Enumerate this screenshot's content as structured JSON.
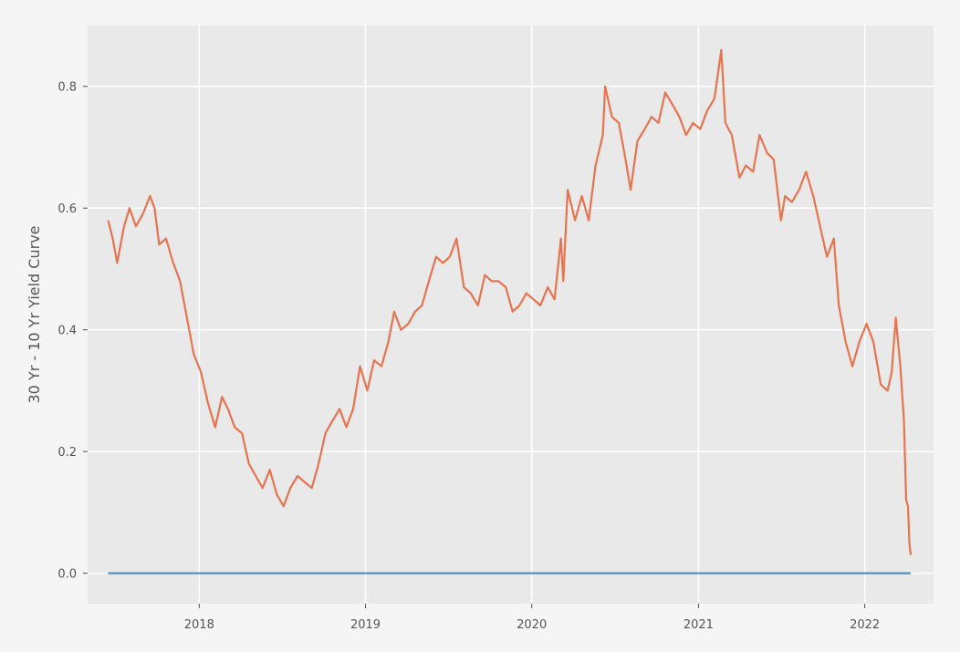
{
  "chart_data": {
    "type": "line",
    "title": "",
    "xlabel": "",
    "ylabel": "30 Yr - 10 Yr Yield Curve",
    "xlim": [
      "2017-05-01",
      "2022-06-01"
    ],
    "ylim": [
      -0.05,
      0.9
    ],
    "x_ticks": [
      "2018",
      "2019",
      "2020",
      "2021",
      "2022"
    ],
    "y_ticks": [
      "0.0",
      "0.2",
      "0.4",
      "0.6",
      "0.8"
    ],
    "grid": true,
    "series": [
      {
        "color": "#e8744f",
        "points": [
          [
            "2017-06-15",
            0.58
          ],
          [
            "2017-06-25",
            0.55
          ],
          [
            "2017-07-05",
            0.51
          ],
          [
            "2017-07-20",
            0.57
          ],
          [
            "2017-08-01",
            0.6
          ],
          [
            "2017-08-15",
            0.57
          ],
          [
            "2017-08-30",
            0.59
          ],
          [
            "2017-09-15",
            0.62
          ],
          [
            "2017-09-25",
            0.6
          ],
          [
            "2017-10-05",
            0.54
          ],
          [
            "2017-10-20",
            0.55
          ],
          [
            "2017-11-05",
            0.51
          ],
          [
            "2017-11-20",
            0.48
          ],
          [
            "2017-12-05",
            0.42
          ],
          [
            "2017-12-20",
            0.36
          ],
          [
            "2018-01-05",
            0.33
          ],
          [
            "2018-01-20",
            0.28
          ],
          [
            "2018-02-05",
            0.24
          ],
          [
            "2018-02-20",
            0.29
          ],
          [
            "2018-03-05",
            0.27
          ],
          [
            "2018-03-20",
            0.24
          ],
          [
            "2018-04-05",
            0.23
          ],
          [
            "2018-04-20",
            0.18
          ],
          [
            "2018-05-05",
            0.16
          ],
          [
            "2018-05-20",
            0.14
          ],
          [
            "2018-06-05",
            0.17
          ],
          [
            "2018-06-20",
            0.13
          ],
          [
            "2018-07-05",
            0.11
          ],
          [
            "2018-07-20",
            0.14
          ],
          [
            "2018-08-05",
            0.16
          ],
          [
            "2018-08-20",
            0.15
          ],
          [
            "2018-09-05",
            0.14
          ],
          [
            "2018-09-20",
            0.18
          ],
          [
            "2018-10-05",
            0.23
          ],
          [
            "2018-10-20",
            0.25
          ],
          [
            "2018-11-05",
            0.27
          ],
          [
            "2018-11-20",
            0.24
          ],
          [
            "2018-12-05",
            0.27
          ],
          [
            "2018-12-20",
            0.34
          ],
          [
            "2019-01-05",
            0.3
          ],
          [
            "2019-01-20",
            0.35
          ],
          [
            "2019-02-05",
            0.34
          ],
          [
            "2019-02-20",
            0.38
          ],
          [
            "2019-03-05",
            0.43
          ],
          [
            "2019-03-20",
            0.4
          ],
          [
            "2019-04-05",
            0.41
          ],
          [
            "2019-04-20",
            0.43
          ],
          [
            "2019-05-05",
            0.44
          ],
          [
            "2019-05-20",
            0.48
          ],
          [
            "2019-06-05",
            0.52
          ],
          [
            "2019-06-20",
            0.51
          ],
          [
            "2019-07-05",
            0.52
          ],
          [
            "2019-07-20",
            0.55
          ],
          [
            "2019-08-05",
            0.47
          ],
          [
            "2019-08-20",
            0.46
          ],
          [
            "2019-09-05",
            0.44
          ],
          [
            "2019-09-20",
            0.49
          ],
          [
            "2019-10-05",
            0.48
          ],
          [
            "2019-10-20",
            0.48
          ],
          [
            "2019-11-05",
            0.47
          ],
          [
            "2019-11-20",
            0.43
          ],
          [
            "2019-12-05",
            0.44
          ],
          [
            "2019-12-20",
            0.46
          ],
          [
            "2020-01-05",
            0.45
          ],
          [
            "2020-01-20",
            0.44
          ],
          [
            "2020-02-05",
            0.47
          ],
          [
            "2020-02-20",
            0.45
          ],
          [
            "2020-03-05",
            0.55
          ],
          [
            "2020-03-10",
            0.48
          ],
          [
            "2020-03-20",
            0.63
          ],
          [
            "2020-04-05",
            0.58
          ],
          [
            "2020-04-20",
            0.62
          ],
          [
            "2020-05-05",
            0.58
          ],
          [
            "2020-05-20",
            0.67
          ],
          [
            "2020-06-05",
            0.72
          ],
          [
            "2020-06-10",
            0.8
          ],
          [
            "2020-06-25",
            0.75
          ],
          [
            "2020-07-10",
            0.74
          ],
          [
            "2020-07-25",
            0.68
          ],
          [
            "2020-08-05",
            0.63
          ],
          [
            "2020-08-20",
            0.71
          ],
          [
            "2020-09-05",
            0.73
          ],
          [
            "2020-09-20",
            0.75
          ],
          [
            "2020-10-05",
            0.74
          ],
          [
            "2020-10-20",
            0.79
          ],
          [
            "2020-11-05",
            0.77
          ],
          [
            "2020-11-20",
            0.75
          ],
          [
            "2020-12-05",
            0.72
          ],
          [
            "2020-12-20",
            0.74
          ],
          [
            "2021-01-05",
            0.73
          ],
          [
            "2021-01-20",
            0.76
          ],
          [
            "2021-02-05",
            0.78
          ],
          [
            "2021-02-20",
            0.86
          ],
          [
            "2021-03-01",
            0.74
          ],
          [
            "2021-03-15",
            0.72
          ],
          [
            "2021-04-01",
            0.65
          ],
          [
            "2021-04-15",
            0.67
          ],
          [
            "2021-05-01",
            0.66
          ],
          [
            "2021-05-15",
            0.72
          ],
          [
            "2021-06-01",
            0.69
          ],
          [
            "2021-06-15",
            0.68
          ],
          [
            "2021-07-01",
            0.58
          ],
          [
            "2021-07-10",
            0.62
          ],
          [
            "2021-07-25",
            0.61
          ],
          [
            "2021-08-10",
            0.63
          ],
          [
            "2021-08-25",
            0.66
          ],
          [
            "2021-09-10",
            0.62
          ],
          [
            "2021-09-25",
            0.57
          ],
          [
            "2021-10-10",
            0.52
          ],
          [
            "2021-10-25",
            0.55
          ],
          [
            "2021-11-05",
            0.44
          ],
          [
            "2021-11-20",
            0.38
          ],
          [
            "2021-12-05",
            0.34
          ],
          [
            "2021-12-20",
            0.38
          ],
          [
            "2022-01-05",
            0.41
          ],
          [
            "2022-01-20",
            0.38
          ],
          [
            "2022-02-05",
            0.31
          ],
          [
            "2022-02-20",
            0.3
          ],
          [
            "2022-03-01",
            0.33
          ],
          [
            "2022-03-10",
            0.42
          ],
          [
            "2022-03-20",
            0.34
          ],
          [
            "2022-03-28",
            0.25
          ],
          [
            "2022-04-02",
            0.12
          ],
          [
            "2022-04-06",
            0.11
          ],
          [
            "2022-04-09",
            0.05
          ],
          [
            "2022-04-12",
            0.03
          ]
        ]
      },
      {
        "color": "#4b94c4",
        "points": [
          [
            "2017-06-15",
            0.0
          ],
          [
            "2022-04-12",
            0.0
          ]
        ]
      }
    ]
  }
}
